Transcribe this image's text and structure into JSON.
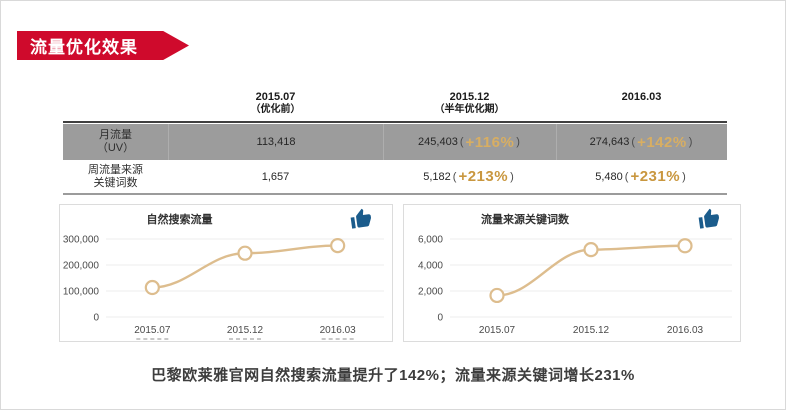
{
  "banner": {
    "title": "流量优化效果"
  },
  "colors": {
    "banner_red": "#cf0a2c",
    "gold": "#c9973f",
    "gold_on_gray": "#d8ae62",
    "row_gray": "#9c9c9c",
    "line_tan": "#ddbd8e",
    "thumb_blue": "#1b5c8c"
  },
  "table": {
    "paren_open": "(",
    "paren_close": ")",
    "col_headers": [
      {
        "line1": "2015.07",
        "line2": "（优化前）"
      },
      {
        "line1": "2015.12",
        "line2": "（半年优化期）"
      },
      {
        "line1": "2016.03",
        "line2": ""
      }
    ],
    "rows": [
      {
        "label_line1": "月流量",
        "label_line2": "（UV）",
        "cells": [
          {
            "value": "113,418"
          },
          {
            "value": "245,403",
            "pct": "+116%"
          },
          {
            "value": "274,643",
            "pct": "+142%"
          }
        ]
      },
      {
        "label_line1": "周流量来源",
        "label_line2": "关键词数",
        "cells": [
          {
            "value": "1,657"
          },
          {
            "value": "5,182",
            "pct": "+213%"
          },
          {
            "value": "5,480",
            "pct": "+231%"
          }
        ]
      }
    ]
  },
  "chart_data": [
    {
      "type": "line",
      "title": "自然搜索流量",
      "x": [
        "2015.07",
        "2015.12",
        "2016.03"
      ],
      "values": [
        113418,
        245403,
        274643
      ],
      "ylim": [
        0,
        300000
      ],
      "yticks": [
        0,
        100000,
        200000,
        300000
      ],
      "ytick_labels": [
        "0",
        "100,000",
        "200,000",
        "300,000"
      ],
      "grid": true,
      "legend": "none",
      "line_color": "#ddbd8e",
      "x_sub_marks": true
    },
    {
      "type": "line",
      "title": "流量来源关键词数",
      "x": [
        "2015.07",
        "2015.12",
        "2016.03"
      ],
      "values": [
        1657,
        5182,
        5480
      ],
      "ylim": [
        0,
        6000
      ],
      "yticks": [
        0,
        2000,
        4000,
        6000
      ],
      "ytick_labels": [
        "0",
        "2,000",
        "4,000",
        "6,000"
      ],
      "grid": true,
      "legend": "none",
      "line_color": "#ddbd8e",
      "x_sub_marks": false
    }
  ],
  "caption": "巴黎欧莱雅官网自然搜索流量提升了142%；流量来源关键词增长231%"
}
